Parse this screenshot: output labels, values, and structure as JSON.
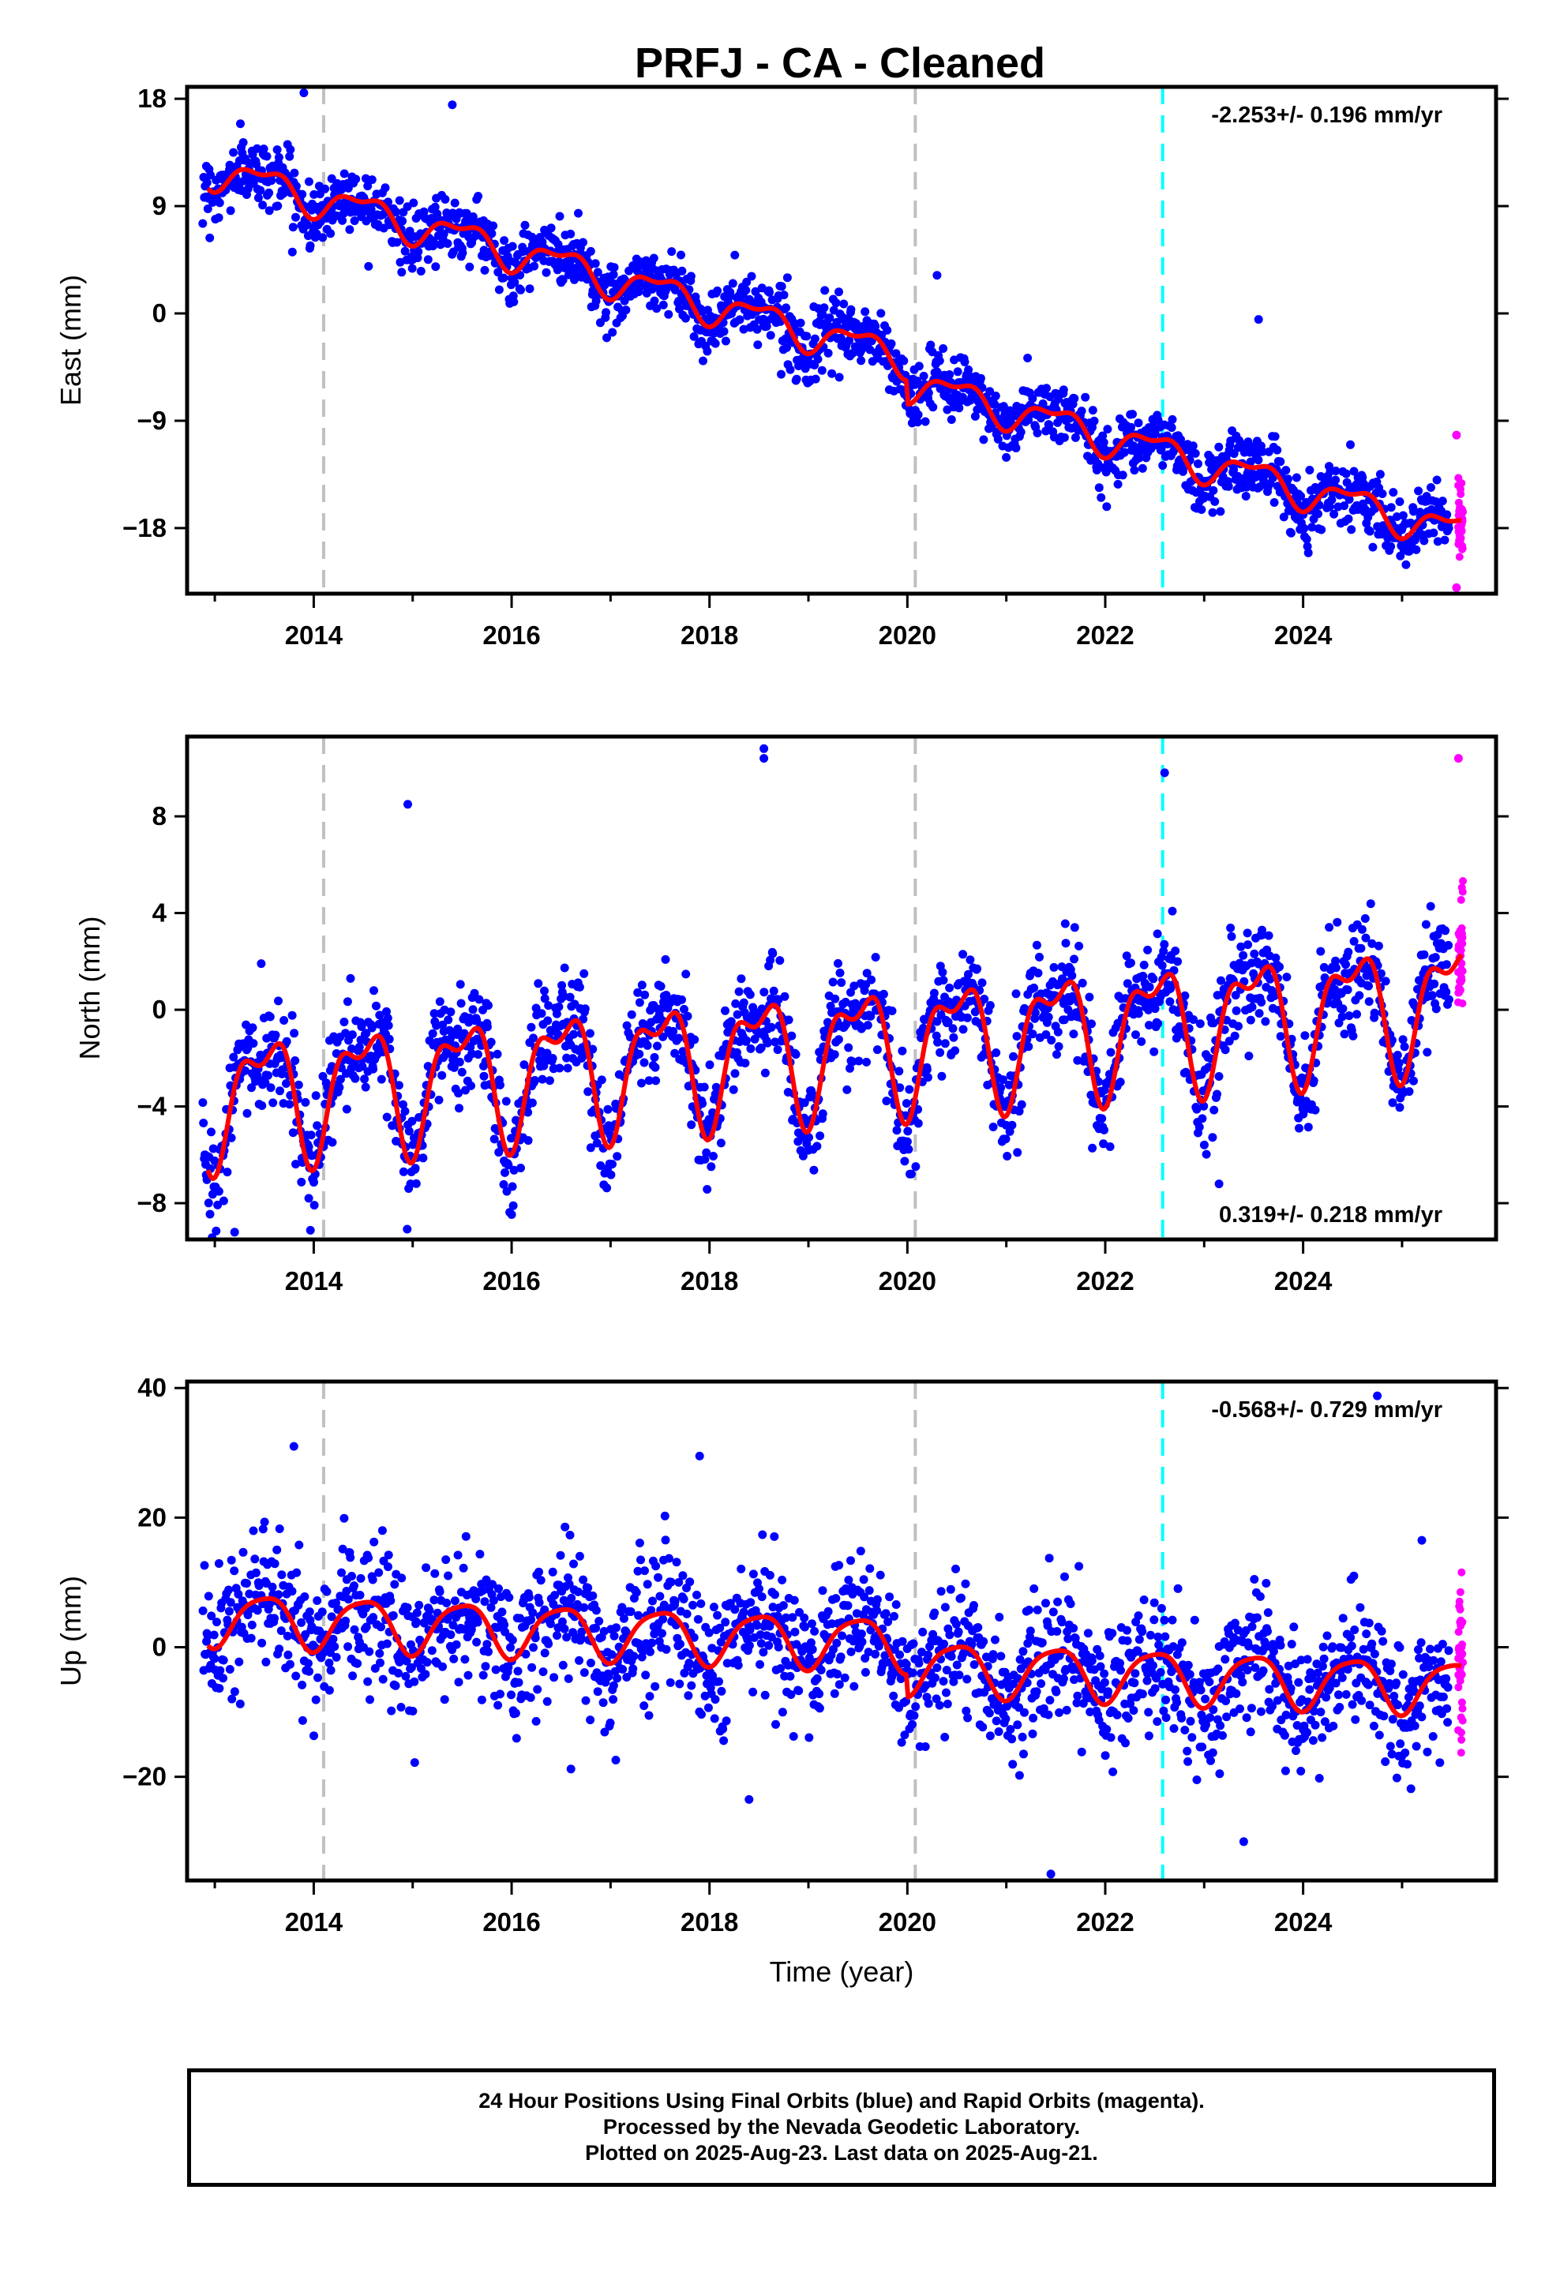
{
  "title": "PRFJ  - CA - Cleaned",
  "colors": {
    "final_points": "#0000ff",
    "rapid_points": "#ff00ff",
    "model_line": "#ff0000",
    "event_line_gray": "#c0c0c0",
    "event_line_cyan": "#00ffff"
  },
  "footer": {
    "line1": "24 Hour Positions Using Final Orbits (blue) and Rapid Orbits (magenta).",
    "line2": "Processed by the Nevada Geodetic Laboratory.",
    "line3": "Plotted on 2025-Aug-23. Last data on 2025-Aug-21."
  },
  "chart_data": [
    {
      "type": "scatter",
      "name": "east",
      "ylabel": "East (mm)",
      "xlabel": "",
      "xlim": [
        2012.72,
        2025.95
      ],
      "ylim": [
        -23.5,
        19.0
      ],
      "yticks": [
        18,
        9,
        0,
        -9,
        -18
      ],
      "ytick_labels": [
        "18",
        "9",
        "0",
        "−9",
        "−18"
      ],
      "xticks": [
        2014,
        2016,
        2018,
        2020,
        2022,
        2024
      ],
      "xtick_labels": [
        "2014",
        "2016",
        "2018",
        "2020",
        "2022",
        "2024"
      ],
      "velocity_label": "-2.253+/- 0.196 mm/yr",
      "velocity_label_position": "top-right",
      "event_lines": [
        {
          "x": 2014.1,
          "color": "gray"
        },
        {
          "x": 2020.08,
          "color": "gray"
        },
        {
          "x": 2022.58,
          "color": "cyan"
        }
      ],
      "trend": {
        "start_year": 2013.0,
        "start_value": 12.0,
        "rate": -2.253,
        "step_at": 2020.0,
        "step": -2.0
      },
      "seasonal": {
        "annual_amp": 1.3,
        "semiannual_amp": 0.6
      },
      "scatter_sd": 1.3,
      "final_range": [
        2012.88,
        2025.48
      ],
      "rapid_range": [
        2025.48,
        2025.62
      ],
      "outliers": [
        {
          "x": 2013.9,
          "y": 18.5
        },
        {
          "x": 2015.4,
          "y": 17.5
        },
        {
          "x": 2023.55,
          "y": -0.5
        },
        {
          "x": 2025.55,
          "y": -23.0
        },
        {
          "x": 2025.55,
          "y": -10.2
        },
        {
          "x": 2020.3,
          "y": 3.2
        }
      ]
    },
    {
      "type": "scatter",
      "name": "north",
      "ylabel": "North (mm)",
      "xlabel": "",
      "xlim": [
        2012.72,
        2025.95
      ],
      "ylim": [
        -9.5,
        11.3
      ],
      "yticks": [
        8,
        4,
        0,
        -4,
        -8
      ],
      "ytick_labels": [
        "8",
        "4",
        "0",
        "−4",
        "−8"
      ],
      "xticks": [
        2014,
        2016,
        2018,
        2020,
        2022,
        2024
      ],
      "xtick_labels": [
        "2014",
        "2016",
        "2018",
        "2020",
        "2022",
        "2024"
      ],
      "velocity_label": "0.319+/- 0.218 mm/yr",
      "velocity_label_position": "bottom-right",
      "event_lines": [
        {
          "x": 2014.1,
          "color": "gray"
        },
        {
          "x": 2020.08,
          "color": "gray"
        },
        {
          "x": 2022.58,
          "color": "cyan"
        }
      ],
      "trend": {
        "start_year": 2013.0,
        "start_value": -3.6,
        "rate": 0.319,
        "step_at": 2020.0,
        "step": 0.0
      },
      "seasonal": {
        "annual_amp": 2.3,
        "semiannual_amp": 1.1
      },
      "scatter_sd": 1.1,
      "final_range": [
        2012.88,
        2025.48
      ],
      "rapid_range": [
        2025.48,
        2025.62
      ],
      "outliers": [
        {
          "x": 2018.55,
          "y": 10.8
        },
        {
          "x": 2018.55,
          "y": 10.4
        },
        {
          "x": 2014.95,
          "y": 8.5
        },
        {
          "x": 2022.6,
          "y": 9.8
        },
        {
          "x": 2025.57,
          "y": 10.4
        },
        {
          "x": 2013.2,
          "y": -9.2
        },
        {
          "x": 2023.15,
          "y": -7.2
        },
        {
          "x": 2013.95,
          "y": -7.8
        }
      ]
    },
    {
      "type": "scatter",
      "name": "up",
      "ylabel": "Up (mm)",
      "xlabel": "Time (year)",
      "xlim": [
        2012.72,
        2025.95
      ],
      "ylim": [
        -36,
        41
      ],
      "yticks": [
        40,
        20,
        0,
        -20
      ],
      "ytick_labels": [
        "40",
        "20",
        "0",
        "−20"
      ],
      "xticks": [
        2014,
        2016,
        2018,
        2020,
        2022,
        2024
      ],
      "xtick_labels": [
        "2014",
        "2016",
        "2018",
        "2020",
        "2022",
        "2024"
      ],
      "velocity_label": "-0.568+/- 0.729 mm/yr",
      "velocity_label_position": "top-right",
      "event_lines": [
        {
          "x": 2014.1,
          "color": "gray"
        },
        {
          "x": 2020.08,
          "color": "gray"
        },
        {
          "x": 2022.58,
          "color": "cyan"
        }
      ],
      "trend": {
        "start_year": 2013.0,
        "start_value": 4.5,
        "rate": -0.568,
        "step_at": 2020.0,
        "step": -3.5
      },
      "seasonal": {
        "annual_amp": 4.0,
        "semiannual_amp": 0.8
      },
      "scatter_sd": 5.0,
      "final_range": [
        2012.88,
        2025.48
      ],
      "rapid_range": [
        2025.48,
        2025.62
      ],
      "outliers": [
        {
          "x": 2013.8,
          "y": 31.0
        },
        {
          "x": 2017.9,
          "y": 29.5
        },
        {
          "x": 2024.75,
          "y": 38.8
        },
        {
          "x": 2021.45,
          "y": -35.0
        },
        {
          "x": 2023.4,
          "y": -30.0
        },
        {
          "x": 2018.4,
          "y": -23.5
        },
        {
          "x": 2016.6,
          "y": -18.8
        },
        {
          "x": 2025.2,
          "y": 16.5
        }
      ]
    }
  ]
}
